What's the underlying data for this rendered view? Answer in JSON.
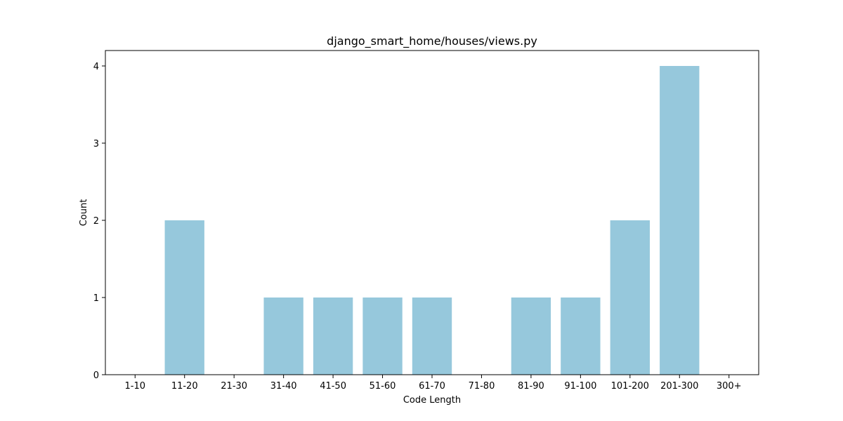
{
  "chart_data": {
    "type": "bar",
    "title": "django_smart_home/houses/views.py",
    "xlabel": "Code Length",
    "ylabel": "Count",
    "categories": [
      "1-10",
      "11-20",
      "21-30",
      "31-40",
      "41-50",
      "51-60",
      "61-70",
      "71-80",
      "81-90",
      "91-100",
      "101-200",
      "201-300",
      "300+"
    ],
    "values": [
      0,
      2,
      0,
      1,
      1,
      1,
      1,
      0,
      1,
      1,
      2,
      4,
      0
    ],
    "ylim": [
      0,
      4.2
    ],
    "yticks": [
      "0",
      "1",
      "2",
      "3",
      "4"
    ],
    "grid": false,
    "legend": "none",
    "bar_color": "#96c8dc"
  }
}
